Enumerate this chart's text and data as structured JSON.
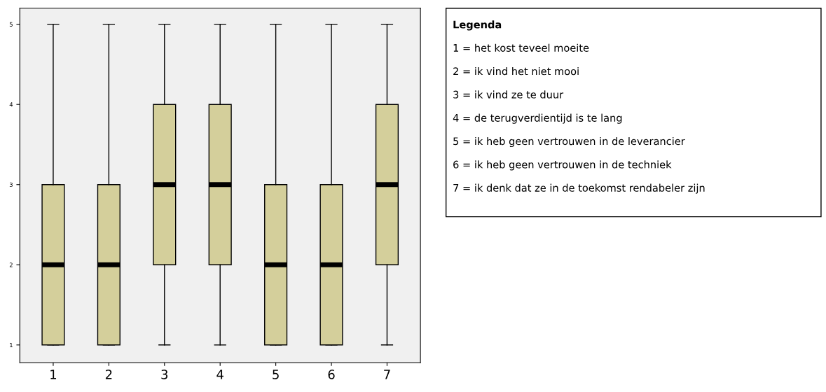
{
  "chart_data": {
    "type": "box",
    "categories": [
      "1",
      "2",
      "3",
      "4",
      "5",
      "6",
      "7"
    ],
    "series": [
      {
        "color": "#d4cf9b",
        "boxes": [
          {
            "low": 1,
            "q1": 1,
            "median": 2,
            "q3": 3,
            "high": 5
          },
          {
            "low": 1,
            "q1": 1,
            "median": 2,
            "q3": 3,
            "high": 5
          },
          {
            "low": 1,
            "q1": 2,
            "median": 3,
            "q3": 4,
            "high": 5
          },
          {
            "low": 1,
            "q1": 2,
            "median": 3,
            "q3": 4,
            "high": 5
          },
          {
            "low": 1,
            "q1": 1,
            "median": 2,
            "q3": 3,
            "high": 5
          },
          {
            "low": 1,
            "q1": 1,
            "median": 2,
            "q3": 3,
            "high": 5
          },
          {
            "low": 1,
            "q1": 2,
            "median": 3,
            "q3": 4,
            "high": 5
          }
        ]
      }
    ],
    "ylim": [
      0.78,
      5.2
    ],
    "yticks": [
      1,
      2,
      3,
      4,
      5
    ],
    "grid": false,
    "annotations": [
      "Legenda",
      "1 = het kost teveel moeite",
      "2 = ik vind het niet mooi",
      "3 = ik vind ze te duur",
      "4 = de terugverdientijd is te lang",
      "5 = ik heb geen vertrouwen in de leverancier",
      "6 = ik heb geen vertrouwen in de techniek",
      "7 = ik denk dat ze in de toekomst rendabeler zijn"
    ]
  }
}
